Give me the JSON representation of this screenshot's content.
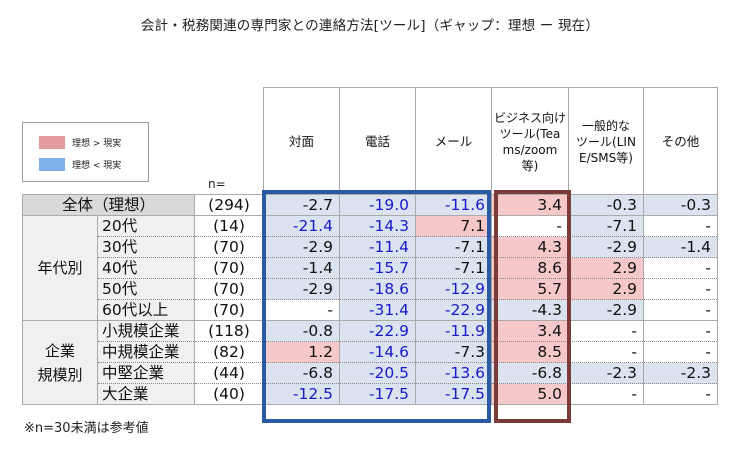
{
  "title": "会計・税務関連の専門家との連絡方法[ツール]（ギャップ：理想 ー 現在）",
  "legend": {
    "items": [
      {
        "label": "理想 > 現実",
        "color": "#e29a9a"
      },
      {
        "label": "理想 < 現実",
        "color": "#7fb0ea"
      }
    ]
  },
  "n_label": "n=",
  "columns": [
    "対面",
    "電話",
    "メール",
    "ビジネス向け\nツール(Tea\nms/zoom\n等)",
    "一般的な\nツール(LIN\nE/SMS等)",
    "その他"
  ],
  "colors": {
    "cell_blue": "#dae3ef",
    "cell_pink": "#f6c8ca",
    "text_blue": "#1a1acc",
    "frame_blue": "#2a5aa4",
    "frame_red": "#7b3b38"
  },
  "groups": {
    "age": "年代別",
    "company": "企業\n規模別"
  },
  "rows": [
    {
      "label": "全体（理想）",
      "n": "(294)",
      "values": [
        "-2.7",
        "-19.0",
        "-11.6",
        "3.4",
        "-0.3",
        "-0.3"
      ],
      "bg": [
        "blue",
        "blue",
        "blue",
        "pink",
        "blue",
        "blue"
      ],
      "fc": [
        "black",
        "blue",
        "blue",
        "black",
        "black",
        "black"
      ]
    },
    {
      "label": "20代",
      "n": "(14)",
      "values": [
        "-21.4",
        "-14.3",
        "7.1",
        "-",
        "-7.1",
        "-"
      ],
      "bg": [
        "blue",
        "blue",
        "pink",
        "white",
        "blue",
        "white"
      ],
      "fc": [
        "blue",
        "blue",
        "black",
        "black",
        "black",
        "black"
      ]
    },
    {
      "label": "30代",
      "n": "(70)",
      "values": [
        "-2.9",
        "-11.4",
        "-7.1",
        "4.3",
        "-2.9",
        "-1.4"
      ],
      "bg": [
        "blue",
        "blue",
        "blue",
        "pink",
        "blue",
        "blue"
      ],
      "fc": [
        "black",
        "blue",
        "black",
        "black",
        "black",
        "black"
      ]
    },
    {
      "label": "40代",
      "n": "(70)",
      "values": [
        "-1.4",
        "-15.7",
        "-7.1",
        "8.6",
        "2.9",
        "-"
      ],
      "bg": [
        "blue",
        "blue",
        "blue",
        "pink",
        "pink",
        "white"
      ],
      "fc": [
        "black",
        "blue",
        "black",
        "black",
        "black",
        "black"
      ]
    },
    {
      "label": "50代",
      "n": "(70)",
      "values": [
        "-2.9",
        "-18.6",
        "-12.9",
        "5.7",
        "2.9",
        "-"
      ],
      "bg": [
        "blue",
        "blue",
        "blue",
        "pink",
        "pink",
        "white"
      ],
      "fc": [
        "black",
        "blue",
        "blue",
        "black",
        "black",
        "black"
      ]
    },
    {
      "label": "60代以上",
      "n": "(70)",
      "values": [
        "-",
        "-31.4",
        "-22.9",
        "-4.3",
        "-2.9",
        "-"
      ],
      "bg": [
        "white",
        "blue",
        "blue",
        "blue",
        "blue",
        "white"
      ],
      "fc": [
        "black",
        "blue",
        "blue",
        "black",
        "black",
        "black"
      ]
    },
    {
      "label": "小規模企業",
      "n": "(118)",
      "values": [
        "-0.8",
        "-22.9",
        "-11.9",
        "3.4",
        "-",
        "-"
      ],
      "bg": [
        "blue",
        "blue",
        "blue",
        "pink",
        "white",
        "white"
      ],
      "fc": [
        "black",
        "blue",
        "blue",
        "black",
        "black",
        "black"
      ]
    },
    {
      "label": "中規模企業",
      "n": "(82)",
      "values": [
        "1.2",
        "-14.6",
        "-7.3",
        "8.5",
        "-",
        "-"
      ],
      "bg": [
        "pink",
        "blue",
        "blue",
        "pink",
        "white",
        "white"
      ],
      "fc": [
        "black",
        "blue",
        "black",
        "black",
        "black",
        "black"
      ]
    },
    {
      "label": "中堅企業",
      "n": "(44)",
      "values": [
        "-6.8",
        "-20.5",
        "-13.6",
        "-6.8",
        "-2.3",
        "-2.3"
      ],
      "bg": [
        "blue",
        "blue",
        "blue",
        "blue",
        "blue",
        "blue"
      ],
      "fc": [
        "black",
        "blue",
        "blue",
        "black",
        "black",
        "black"
      ]
    },
    {
      "label": "大企業",
      "n": "(40)",
      "values": [
        "-12.5",
        "-17.5",
        "-17.5",
        "5.0",
        "-",
        "-"
      ],
      "bg": [
        "blue",
        "blue",
        "blue",
        "pink",
        "white",
        "white"
      ],
      "fc": [
        "blue",
        "blue",
        "blue",
        "black",
        "black",
        "black"
      ]
    }
  ],
  "note": "※n=30未満は参考値"
}
